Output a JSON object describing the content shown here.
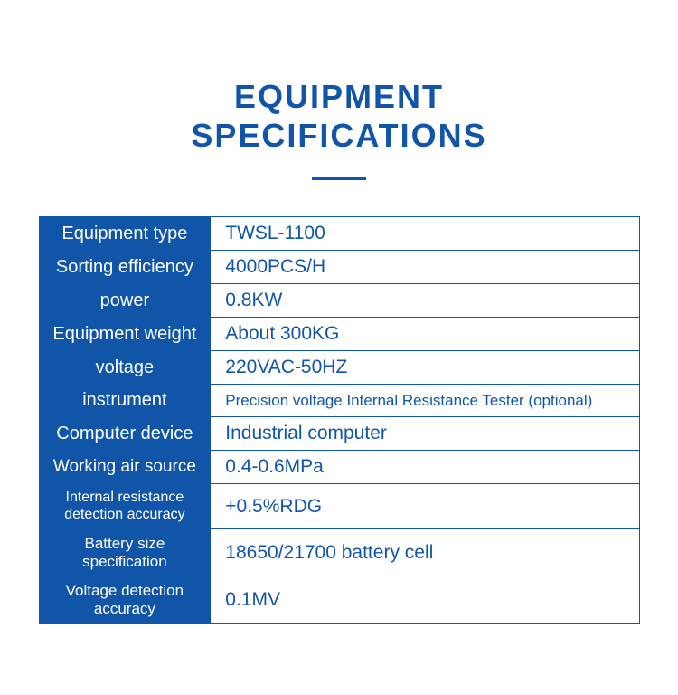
{
  "title": {
    "line1": "EQUIPMENT",
    "line2": "SPECIFICATIONS",
    "color": "#1055a8",
    "fontsize": 36
  },
  "divider": {
    "color": "#1055a8",
    "width": 60,
    "height": 3
  },
  "table": {
    "border_color": "#1055a8",
    "label_bg": "#1055a8",
    "label_color": "#ffffff",
    "value_color": "#1055a8",
    "rows": [
      {
        "label": "Equipment type",
        "value": "TWSL-1100",
        "label_fontsize": 20,
        "value_fontsize": 21
      },
      {
        "label": "Sorting efficiency",
        "value": "4000PCS/H",
        "label_fontsize": 20,
        "value_fontsize": 21
      },
      {
        "label": "power",
        "value": "0.8KW",
        "label_fontsize": 20,
        "value_fontsize": 21
      },
      {
        "label": "Equipment weight",
        "value": "About 300KG",
        "label_fontsize": 20,
        "value_fontsize": 21
      },
      {
        "label": "voltage",
        "value": "220VAC-50HZ",
        "label_fontsize": 20,
        "value_fontsize": 21
      },
      {
        "label": "instrument",
        "value": "Precision voltage Internal Resistance Tester (optional)",
        "label_fontsize": 20,
        "value_fontsize": 17
      },
      {
        "label": "Computer device",
        "value": "Industrial computer",
        "label_fontsize": 20,
        "value_fontsize": 21
      },
      {
        "label": "Working air source",
        "value": "0.4-0.6MPa",
        "label_fontsize": 19,
        "value_fontsize": 21
      },
      {
        "label": "Internal resistance detection accuracy",
        "value": "+0.5%RDG",
        "label_fontsize": 16,
        "value_fontsize": 21
      },
      {
        "label": "Battery size specification",
        "value": "18650/21700 battery cell",
        "label_fontsize": 17,
        "value_fontsize": 21
      },
      {
        "label": "Voltage detection accuracy",
        "value": "0.1MV",
        "label_fontsize": 17,
        "value_fontsize": 21
      }
    ]
  }
}
